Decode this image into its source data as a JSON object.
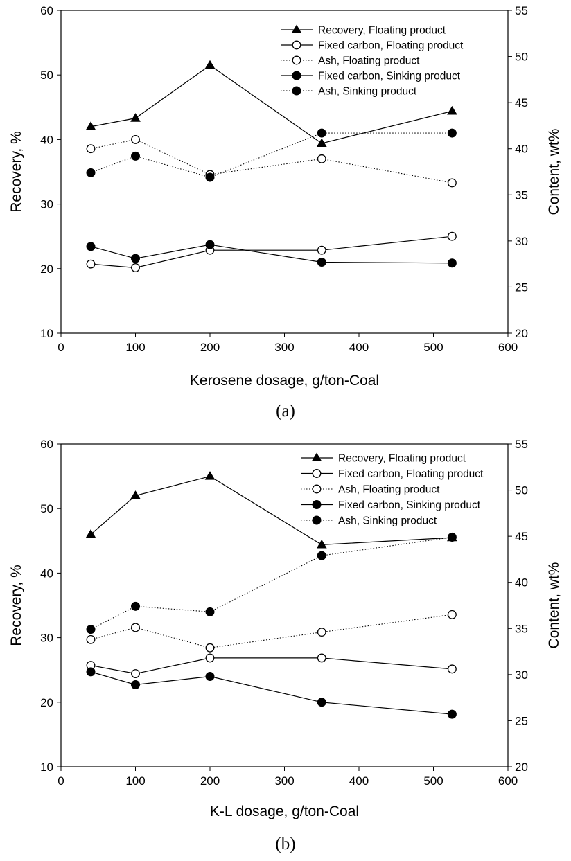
{
  "chart_data": [
    {
      "type": "line",
      "panel_label": "(a)",
      "xlabel": "Kerosene dosage, g/ton-Coal",
      "ylabel": "Recovery, %",
      "y2label": "Content, wt%",
      "xlim": [
        0,
        600
      ],
      "ylim": [
        10,
        60
      ],
      "y2lim": [
        20,
        55
      ],
      "xticks": [
        "0",
        "100",
        "200",
        "300",
        "400",
        "500",
        "600"
      ],
      "yticks": [
        "10",
        "20",
        "30",
        "40",
        "50",
        "60"
      ],
      "y2ticks": [
        "20",
        "25",
        "30",
        "35",
        "40",
        "45",
        "50",
        "55"
      ],
      "legend_position": "top-right",
      "series": [
        {
          "name": "Recovery, Floating product",
          "axis": "left",
          "marker": "triangle",
          "line": "solid",
          "x": [
            40,
            100,
            200,
            350,
            525
          ],
          "values": [
            42.0,
            43.3,
            51.5,
            39.4,
            44.4
          ]
        },
        {
          "name": "Fixed carbon, Floating product",
          "axis": "right",
          "marker": "open-circle",
          "line": "solid",
          "x": [
            40,
            100,
            200,
            350,
            525
          ],
          "values": [
            27.5,
            27.1,
            29.0,
            29.0,
            30.5
          ]
        },
        {
          "name": "Ash, Floating product",
          "axis": "right",
          "marker": "open-circle",
          "line": "dotted",
          "x": [
            40,
            100,
            200,
            350,
            525
          ],
          "values": [
            40.0,
            41.0,
            37.2,
            38.9,
            36.3
          ]
        },
        {
          "name": "Fixed carbon, Sinking product",
          "axis": "right",
          "marker": "filled-circle",
          "line": "solid",
          "x": [
            40,
            100,
            200,
            350,
            525
          ],
          "values": [
            29.4,
            28.1,
            29.6,
            27.7,
            27.6
          ]
        },
        {
          "name": "Ash, Sinking product",
          "axis": "right",
          "marker": "filled-circle",
          "line": "dotted",
          "x": [
            40,
            100,
            200,
            350,
            525
          ],
          "values": [
            37.4,
            39.2,
            36.9,
            41.7,
            41.7
          ]
        }
      ]
    },
    {
      "type": "line",
      "panel_label": "(b)",
      "xlabel": "K-L dosage, g/ton-Coal",
      "ylabel": "Recovery, %",
      "y2label": "Content, wt%",
      "xlim": [
        0,
        600
      ],
      "ylim": [
        10,
        60
      ],
      "y2lim": [
        20,
        55
      ],
      "xticks": [
        "0",
        "100",
        "200",
        "300",
        "400",
        "500",
        "600"
      ],
      "yticks": [
        "10",
        "20",
        "30",
        "40",
        "50",
        "60"
      ],
      "y2ticks": [
        "20",
        "25",
        "30",
        "35",
        "40",
        "45",
        "50",
        "55"
      ],
      "legend_position": "top-right",
      "series": [
        {
          "name": "Recovery, Floating product",
          "axis": "left",
          "marker": "triangle",
          "line": "solid",
          "x": [
            40,
            100,
            200,
            350,
            525
          ],
          "values": [
            46.0,
            52.0,
            55.0,
            44.4,
            45.5
          ]
        },
        {
          "name": "Fixed carbon, Floating product",
          "axis": "right",
          "marker": "open-circle",
          "line": "solid",
          "x": [
            40,
            100,
            200,
            350,
            525
          ],
          "values": [
            31.0,
            30.1,
            31.8,
            31.8,
            30.6
          ]
        },
        {
          "name": "Ash, Floating product",
          "axis": "right",
          "marker": "open-circle",
          "line": "dotted",
          "x": [
            40,
            100,
            200,
            350,
            525
          ],
          "values": [
            33.8,
            35.1,
            32.9,
            34.6,
            36.5
          ]
        },
        {
          "name": "Fixed carbon, Sinking product",
          "axis": "right",
          "marker": "filled-circle",
          "line": "solid",
          "x": [
            40,
            100,
            200,
            350,
            525
          ],
          "values": [
            30.3,
            28.9,
            29.8,
            27.0,
            25.7
          ]
        },
        {
          "name": "Ash, Sinking product",
          "axis": "right",
          "marker": "filled-circle",
          "line": "dotted",
          "x": [
            40,
            100,
            200,
            350,
            525
          ],
          "values": [
            34.9,
            37.4,
            36.8,
            42.9,
            44.9
          ]
        }
      ]
    }
  ]
}
